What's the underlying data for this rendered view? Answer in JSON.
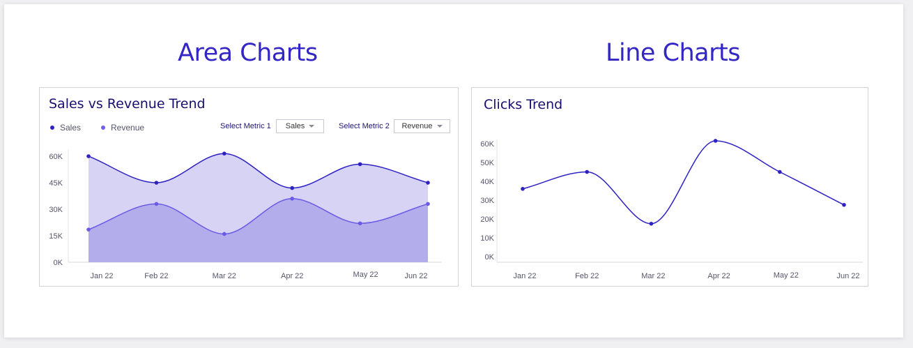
{
  "sections": {
    "area_title": "Area Charts",
    "line_title": "Line Charts"
  },
  "area_card": {
    "title": "Sales vs Revenue Trend",
    "legend": [
      {
        "label": "Sales",
        "color": "#2e22c2"
      },
      {
        "label": "Revenue",
        "color": "#7060e8"
      }
    ],
    "metric1_label": "Select Metric 1",
    "metric1_value": "Sales",
    "metric2_label": "Select Metric 2",
    "metric2_value": "Revenue"
  },
  "line_card": {
    "title": "Clicks Trend"
  },
  "chart_data": [
    {
      "type": "area",
      "title": "Sales vs Revenue Trend",
      "categories": [
        "Jan 22",
        "Feb 22",
        "Mar 22",
        "Apr 22",
        "May 22",
        "Jun 22"
      ],
      "yticks": [
        "0K",
        "15K",
        "30K",
        "45K",
        "60K"
      ],
      "ylim": [
        0,
        60000
      ],
      "series": [
        {
          "name": "Sales",
          "values": [
            60000,
            45000,
            61500,
            42000,
            55500,
            45000
          ],
          "color": "#2e22c2",
          "fill": "#d6d3f5"
        },
        {
          "name": "Revenue",
          "values": [
            18500,
            33000,
            16000,
            36000,
            22000,
            33000
          ],
          "color": "#6a5ae6",
          "fill": "#b3aeeb"
        }
      ],
      "legend": "top-left"
    },
    {
      "type": "line",
      "title": "Clicks Trend",
      "categories": [
        "Jan 22",
        "Feb 22",
        "Mar 22",
        "Apr 22",
        "May 22",
        "Jun 22"
      ],
      "yticks": [
        "0K",
        "10K",
        "20K",
        "30K",
        "40K",
        "50K",
        "60K"
      ],
      "ylim": [
        0,
        60000
      ],
      "series": [
        {
          "values": [
            36000,
            45000,
            17500,
            61500,
            45000,
            27500
          ],
          "color": "#2e22c2"
        }
      ]
    }
  ]
}
